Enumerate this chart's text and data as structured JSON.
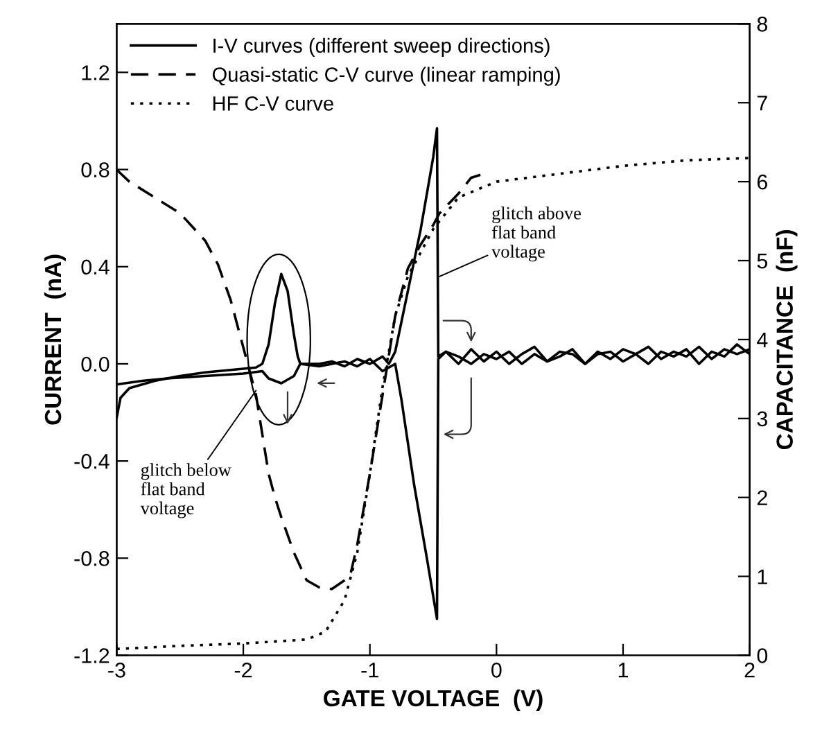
{
  "chart_data": {
    "type": "line",
    "xlabel": "GATE VOLTAGE  (V)",
    "ylabel": "CURRENT  (nA)",
    "y2label": "CAPACITANCE  (nF)",
    "xlim": [
      -3,
      2
    ],
    "xticks": [
      -3,
      -2,
      -1,
      0,
      1,
      2
    ],
    "ylim": [
      -1.2,
      1.4
    ],
    "yticks": [
      {
        "value": -1.2,
        "label": "-1.2"
      },
      {
        "value": -0.8,
        "label": "-0.8"
      },
      {
        "value": -0.4,
        "label": "-0.4"
      },
      {
        "value": 0,
        "label": "0.0"
      },
      {
        "value": 0.4,
        "label": "0.4"
      },
      {
        "value": 0.8,
        "label": "0.8"
      },
      {
        "value": 1.2,
        "label": "1.2"
      }
    ],
    "y2lim": [
      0,
      8
    ],
    "y2ticks": [
      0,
      1,
      2,
      3,
      4,
      5,
      6,
      7,
      8
    ],
    "legend": "top left",
    "grid": false,
    "marker": "none",
    "series": [
      {
        "name": "I-V curves (different sweep directions)",
        "color": "#000000",
        "line_style": "solid",
        "x": [
          -3,
          -2.97,
          -2.9,
          -2.7,
          -2.5,
          -2.3,
          -2.1,
          -1.9,
          -1.85,
          -1.8,
          -1.75,
          -1.7,
          -1.65,
          -1.6,
          -1.57,
          -1.55,
          -1.4,
          -1.3,
          -1.2,
          -1.1,
          -1.0,
          -0.9,
          -0.85,
          -0.8,
          -0.7,
          -0.6,
          -0.5,
          -0.47,
          -0.46,
          -0.4,
          -0.3,
          -0.2,
          -0.1,
          0.0,
          0.1,
          0.2,
          0.3,
          0.4,
          0.5,
          0.6,
          0.7,
          0.8,
          0.9,
          1.0,
          1.1,
          1.2,
          1.3,
          1.4,
          1.5,
          1.6,
          1.7,
          1.8,
          1.9,
          2.0
        ],
        "values": [
          -0.22,
          -0.14,
          -0.1,
          -0.07,
          -0.05,
          -0.035,
          -0.025,
          -0.015,
          0.0,
          0.08,
          0.25,
          0.37,
          0.3,
          0.12,
          0.03,
          0.0,
          0.0,
          0.01,
          -0.01,
          0.02,
          0.0,
          0.03,
          0.0,
          0.05,
          0.3,
          0.55,
          0.85,
          0.97,
          0.03,
          0.05,
          0.0,
          0.06,
          0.01,
          0.05,
          0.0,
          0.04,
          0.07,
          0.01,
          0.03,
          0.06,
          0.0,
          0.04,
          0.05,
          0.01,
          0.04,
          0.07,
          0.02,
          0.05,
          0.03,
          0.07,
          0.02,
          0.06,
          0.04,
          0.06
        ]
      },
      {
        "color": "#000000",
        "line_style": "solid",
        "x": [
          2.0,
          1.9,
          1.8,
          1.7,
          1.6,
          1.5,
          1.4,
          1.3,
          1.2,
          1.1,
          1.0,
          0.9,
          0.8,
          0.7,
          0.6,
          0.5,
          0.4,
          0.3,
          0.2,
          0.1,
          0.0,
          -0.1,
          -0.2,
          -0.3,
          -0.4,
          -0.46,
          -0.47,
          -0.55,
          -0.65,
          -0.75,
          -0.8,
          -0.9,
          -1.0,
          -1.1,
          -1.2,
          -1.3,
          -1.4,
          -1.55,
          -1.6,
          -1.7,
          -1.8,
          -1.85,
          -2.0,
          -2.3,
          -2.6,
          -2.8,
          -3.0
        ],
        "values": [
          0.04,
          0.08,
          0.03,
          0.05,
          0.0,
          0.06,
          0.03,
          0.05,
          0.0,
          0.04,
          0.06,
          0.02,
          0.05,
          0.0,
          0.04,
          0.05,
          0.01,
          0.04,
          0.0,
          0.05,
          0.02,
          0.04,
          0.0,
          0.03,
          0.05,
          0.02,
          -1.05,
          -0.8,
          -0.5,
          -0.15,
          0.0,
          -0.03,
          0.02,
          -0.01,
          0.01,
          0.0,
          -0.01,
          0.0,
          -0.05,
          -0.08,
          -0.06,
          -0.03,
          -0.04,
          -0.05,
          -0.06,
          -0.07,
          -0.085
        ]
      },
      {
        "name": "Quasi-static C-V curve (linear ramping)",
        "color": "#000000",
        "line_style": "dashed",
        "axis": "y2",
        "x": [
          -3,
          -2.9,
          -2.7,
          -2.5,
          -2.3,
          -2.2,
          -2.1,
          -2.0,
          -1.9,
          -1.85,
          -1.8,
          -1.75,
          -1.7,
          -1.6,
          -1.5,
          -1.4,
          -1.3,
          -1.2,
          -1.15,
          -1.1,
          -1.0,
          -0.9,
          -0.8,
          -0.7,
          -0.6,
          -0.5,
          -0.45,
          -0.3,
          -0.2,
          -0.1
        ],
        "values": [
          6.15,
          6.0,
          5.8,
          5.6,
          5.25,
          4.95,
          4.5,
          3.9,
          3.3,
          2.8,
          2.3,
          2.0,
          1.75,
          1.3,
          0.95,
          0.86,
          0.84,
          0.95,
          1.05,
          1.4,
          2.3,
          3.3,
          4.3,
          4.9,
          5.2,
          5.45,
          5.6,
          5.85,
          6.05,
          6.1
        ]
      },
      {
        "name": "HF C-V curve",
        "color": "#000000",
        "line_style": "dotted",
        "axis": "y2",
        "x": [
          -3,
          -2.5,
          -2.0,
          -1.5,
          -1.35,
          -1.2,
          -1.1,
          -1.0,
          -0.9,
          -0.8,
          -0.7,
          -0.6,
          -0.5,
          -0.3,
          0.0,
          0.5,
          1.0,
          1.5,
          2.0
        ],
        "values": [
          0.08,
          0.12,
          0.15,
          0.2,
          0.3,
          0.7,
          1.3,
          2.3,
          3.4,
          4.3,
          4.8,
          5.1,
          5.4,
          5.8,
          6.0,
          6.1,
          6.2,
          6.27,
          6.3
        ]
      }
    ],
    "annotations": [
      {
        "text": "glitch above\nflat band\nvoltage",
        "x": -0.45,
        "y": 0.36
      },
      {
        "text": "glitch below\nflat band\nvoltage",
        "x": -1.9,
        "y": -0.11
      }
    ]
  }
}
